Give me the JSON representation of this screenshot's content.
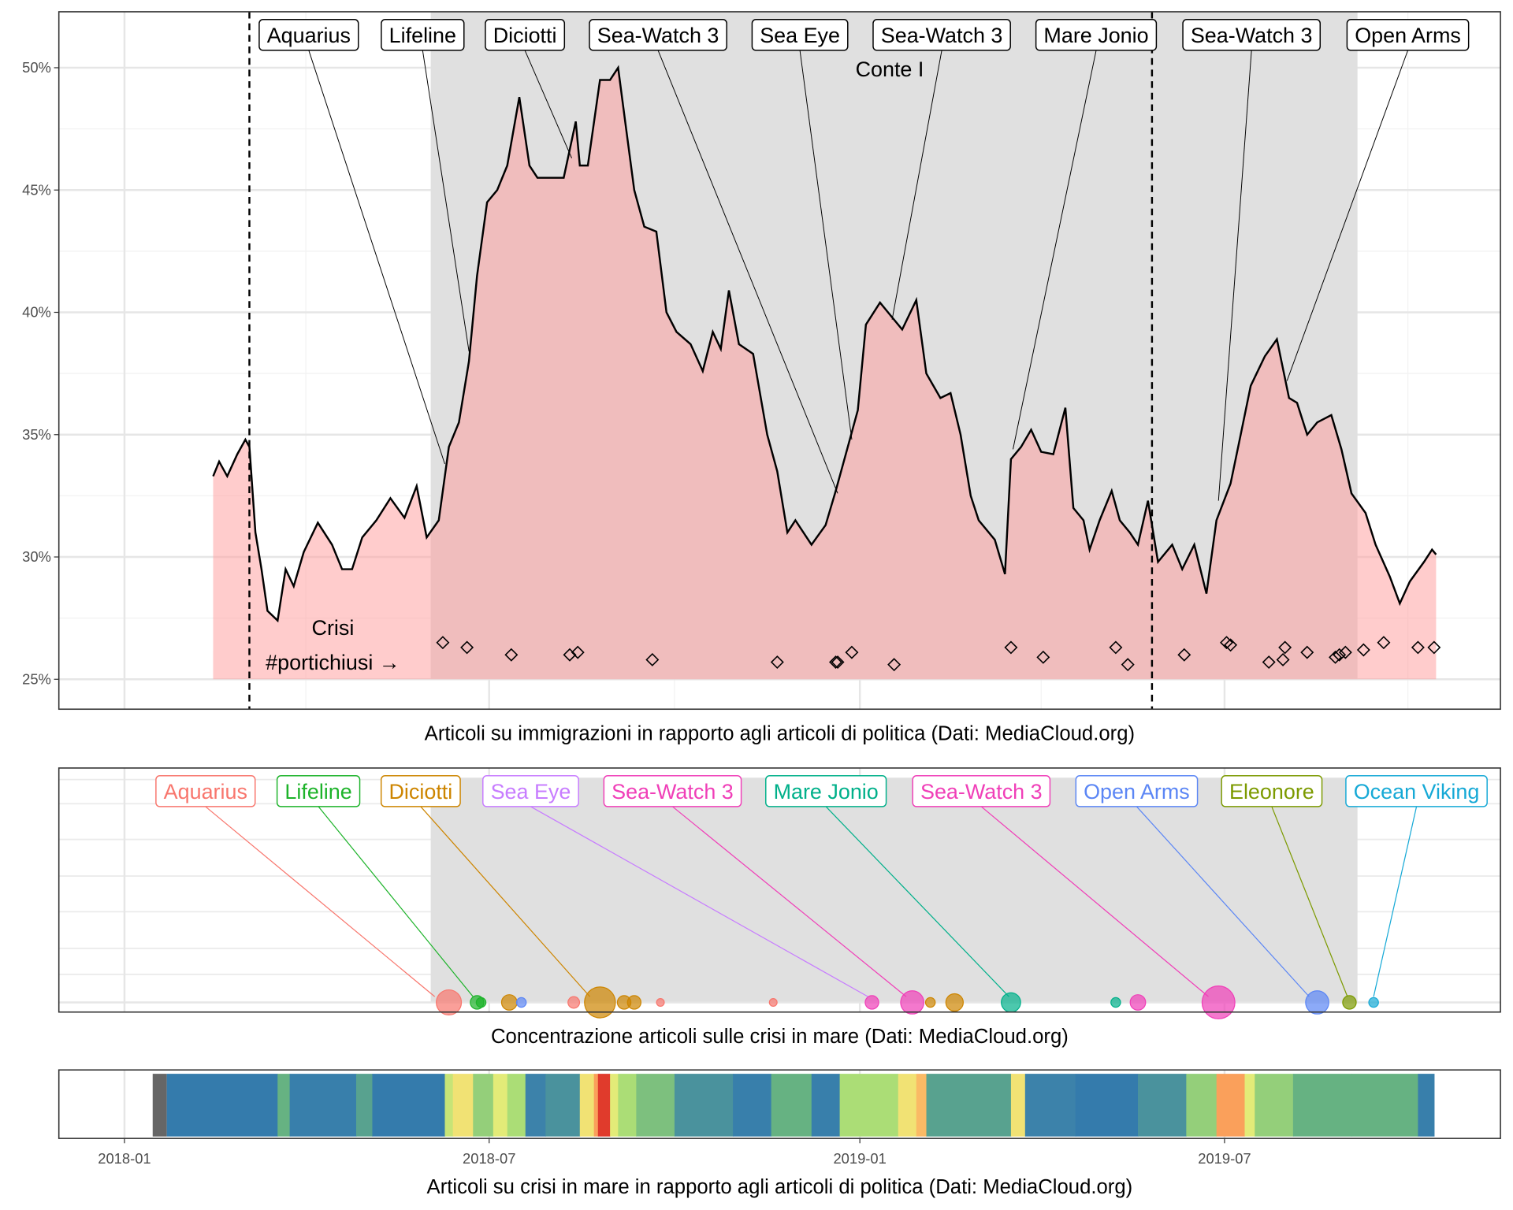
{
  "chart_data": [
    {
      "type": "area",
      "title": "Articoli su immigrazioni in rapporto agli articoli di politica (Dati: MediaCloud.org)",
      "x_unit": "days since 2018-01-01",
      "ylim": [
        23.8,
        52.3
      ],
      "y_ticks": [
        25,
        30,
        35,
        40,
        45,
        50
      ],
      "y_tick_labels": [
        "25%",
        "30%",
        "35%",
        "40%",
        "45%",
        "50%"
      ],
      "colors": {
        "fill_outside": "#ffcccc",
        "fill_inside": "#e5b3b3",
        "line": "#000000",
        "shade": "#e0e0e0"
      },
      "series": [
        [
          44,
          33.3
        ],
        [
          47,
          33.9
        ],
        [
          51,
          33.3
        ],
        [
          56,
          34.2
        ],
        [
          60,
          34.8
        ],
        [
          62,
          34.5
        ],
        [
          65,
          31
        ],
        [
          68,
          29.5
        ],
        [
          71,
          27.8
        ],
        [
          76,
          27.4
        ],
        [
          80,
          29.5
        ],
        [
          84,
          28.8
        ],
        [
          89,
          30.2
        ],
        [
          96,
          31.4
        ],
        [
          103,
          30.5
        ],
        [
          108,
          29.5
        ],
        [
          113,
          29.5
        ],
        [
          118,
          30.8
        ],
        [
          125,
          31.5
        ],
        [
          132,
          32.4
        ],
        [
          139,
          31.6
        ],
        [
          145,
          32.9
        ],
        [
          150,
          30.8
        ],
        [
          156,
          31.5
        ],
        [
          161,
          34.5
        ],
        [
          166,
          35.5
        ],
        [
          171,
          38
        ],
        [
          175,
          41.5
        ],
        [
          180,
          44.5
        ],
        [
          185,
          45
        ],
        [
          190,
          46
        ],
        [
          196,
          48.8
        ],
        [
          201,
          46
        ],
        [
          205,
          45.5
        ],
        [
          211,
          45.5
        ],
        [
          218,
          45.5
        ],
        [
          224,
          47.8
        ],
        [
          226,
          46
        ],
        [
          230,
          46
        ],
        [
          236,
          49.5
        ],
        [
          241,
          49.5
        ],
        [
          245,
          50
        ],
        [
          249,
          47.5
        ],
        [
          253,
          45
        ],
        [
          258,
          43.5
        ],
        [
          264,
          43.3
        ],
        [
          269,
          40
        ],
        [
          274,
          39.2
        ],
        [
          281,
          38.7
        ],
        [
          287,
          37.6
        ],
        [
          292,
          39.2
        ],
        [
          296,
          38.5
        ],
        [
          300,
          40.9
        ],
        [
          305,
          38.7
        ],
        [
          312,
          38.3
        ],
        [
          319,
          35
        ],
        [
          324,
          33.5
        ],
        [
          329,
          31
        ],
        [
          333,
          31.5
        ],
        [
          341,
          30.5
        ],
        [
          348,
          31.3
        ],
        [
          353,
          32.7
        ],
        [
          359,
          34.5
        ],
        [
          364,
          36
        ],
        [
          368,
          39.5
        ],
        [
          375,
          40.4
        ],
        [
          381,
          39.8
        ],
        [
          386,
          39.3
        ],
        [
          393,
          40.5
        ],
        [
          398,
          37.5
        ],
        [
          405,
          36.5
        ],
        [
          410,
          36.7
        ],
        [
          415,
          35
        ],
        [
          420,
          32.5
        ],
        [
          424,
          31.5
        ],
        [
          432,
          30.7
        ],
        [
          437,
          29.3
        ],
        [
          440,
          34
        ],
        [
          445,
          34.5
        ],
        [
          450,
          35.2
        ],
        [
          455,
          34.3
        ],
        [
          461,
          34.2
        ],
        [
          467,
          36.1
        ],
        [
          471,
          32
        ],
        [
          476,
          31.5
        ],
        [
          479,
          30.3
        ],
        [
          484,
          31.5
        ],
        [
          490,
          32.7
        ],
        [
          494,
          31.5
        ],
        [
          499,
          31
        ],
        [
          503,
          30.5
        ],
        [
          508,
          32.3
        ],
        [
          513,
          29.8
        ],
        [
          520,
          30.5
        ],
        [
          525,
          29.5
        ],
        [
          531,
          30.5
        ],
        [
          537,
          28.5
        ],
        [
          542,
          31.5
        ],
        [
          549,
          33
        ],
        [
          554,
          35
        ],
        [
          559,
          37
        ],
        [
          566,
          38.2
        ],
        [
          572,
          38.9
        ],
        [
          578,
          36.5
        ],
        [
          582,
          36.3
        ],
        [
          587,
          35
        ],
        [
          592,
          35.5
        ],
        [
          599,
          35.8
        ],
        [
          604,
          34.4
        ],
        [
          609,
          32.6
        ],
        [
          616,
          31.8
        ],
        [
          621,
          30.5
        ],
        [
          628,
          29.2
        ],
        [
          633,
          28.1
        ],
        [
          638,
          29
        ],
        [
          645,
          29.8
        ],
        [
          649,
          30.3
        ],
        [
          651,
          30.1
        ]
      ],
      "event_markers": [
        [
          158,
          26.5
        ],
        [
          170,
          26.3
        ],
        [
          192,
          26
        ],
        [
          221,
          26
        ],
        [
          225,
          26.1
        ],
        [
          262,
          25.8
        ],
        [
          324,
          25.7
        ],
        [
          353,
          25.7
        ],
        [
          354,
          25.7
        ],
        [
          361,
          26.1
        ],
        [
          382,
          25.6
        ],
        [
          440,
          26.3
        ],
        [
          456,
          25.9
        ],
        [
          492,
          26.3
        ],
        [
          498,
          25.6
        ],
        [
          526,
          26
        ],
        [
          547,
          26.5
        ],
        [
          549,
          26.4
        ],
        [
          568,
          25.7
        ],
        [
          575,
          25.8
        ],
        [
          576,
          26.3
        ],
        [
          587,
          26.1
        ],
        [
          601,
          25.9
        ],
        [
          603,
          26
        ],
        [
          606,
          26.1
        ],
        [
          615,
          26.2
        ],
        [
          625,
          26.5
        ],
        [
          642,
          26.3
        ],
        [
          650,
          26.3
        ]
      ],
      "shaded_period": {
        "start_day": 152,
        "end_day": 612,
        "label": "Conte I"
      },
      "vlines": [
        {
          "day": 62,
          "label_line1": "Crisi",
          "label_line2": "#portichiusi →"
        },
        {
          "day": 510
        }
      ],
      "annotations": [
        {
          "label": "Aquarius",
          "target": [
            159,
            33.8
          ]
        },
        {
          "label": "Lifeline",
          "target": [
            171,
            38.4
          ]
        },
        {
          "label": "Diciotti",
          "target": [
            222,
            46.3
          ]
        },
        {
          "label": "Sea-Watch 3",
          "target": [
            354,
            32.6
          ]
        },
        {
          "label": "Sea Eye",
          "target": [
            361,
            34.8
          ]
        },
        {
          "label": "Sea-Watch 3",
          "target": [
            381,
            39.7
          ]
        },
        {
          "label": "Mare Jonio",
          "target": [
            441,
            34.4
          ]
        },
        {
          "label": "Sea-Watch 3",
          "target": [
            543,
            32.3
          ]
        },
        {
          "label": "Open Arms",
          "target": [
            577,
            37.2
          ]
        }
      ]
    },
    {
      "type": "scatter",
      "title": "Concentrazione articoli sulle crisi in mare (Dati: MediaCloud.org)",
      "x_unit": "days since 2018-01-01",
      "groups": [
        {
          "label": "Aquarius",
          "color": "#F8766D",
          "target_day": 154,
          "points": [
            [
              161,
              13
            ],
            [
              223,
              6
            ],
            [
              266,
              4
            ],
            [
              322,
              4
            ]
          ]
        },
        {
          "label": "Lifeline",
          "color": "#1DB32A",
          "target_day": 173,
          "points": [
            [
              175,
              7
            ],
            [
              177,
              5
            ]
          ]
        },
        {
          "label": "Diciotti",
          "color": "#CD8500",
          "target_day": 231,
          "points": [
            [
              191,
              8
            ],
            [
              236,
              16
            ],
            [
              248,
              7
            ],
            [
              253,
              7
            ],
            [
              400,
              5
            ],
            [
              412,
              9
            ]
          ]
        },
        {
          "label": "Sea Eye",
          "color": "#C77CFF",
          "target_day": 369,
          "points": []
        },
        {
          "label": "Sea-Watch 3",
          "color": "#F03FB8",
          "target_day": 388,
          "points": [
            [
              371,
              7
            ],
            [
              391,
              12
            ]
          ]
        },
        {
          "label": "Mare Jonio",
          "color": "#00B08A",
          "target_day": 439,
          "points": [
            [
              440,
              10
            ],
            [
              492,
              5
            ]
          ]
        },
        {
          "label": "Sea-Watch 3",
          "color": "#F03FB8",
          "target_day": 538,
          "points": [
            [
              503,
              8
            ],
            [
              543,
              17
            ]
          ]
        },
        {
          "label": "Open Arms",
          "color": "#5B86F5",
          "target_day": 588,
          "points": [
            [
              197,
              5
            ],
            [
              592,
              12
            ]
          ]
        },
        {
          "label": "Eleonore",
          "color": "#7C9A00",
          "target_day": 607,
          "points": [
            [
              608,
              7
            ]
          ]
        },
        {
          "label": "Ocean Viking",
          "color": "#16A9D6",
          "target_day": 620,
          "points": [
            [
              620,
              5
            ]
          ]
        }
      ]
    },
    {
      "type": "heatmap",
      "title": "Articoli su crisi in mare in rapporto agli articoli di politica (Dati: MediaCloud.org)",
      "x_ticks": [
        0,
        181,
        365,
        546
      ],
      "x_tick_labels": [
        "2018-01",
        "2018-07",
        "2019-01",
        "2019-07"
      ],
      "missing": [
        14,
        21
      ],
      "segments": [
        [
          21,
          76,
          0.1
        ],
        [
          76,
          82,
          0.35
        ],
        [
          82,
          115,
          0.15
        ],
        [
          115,
          123,
          0.3
        ],
        [
          123,
          159,
          0.1
        ],
        [
          159,
          163,
          0.55
        ],
        [
          163,
          173,
          0.65
        ],
        [
          173,
          183,
          0.45
        ],
        [
          183,
          190,
          0.6
        ],
        [
          190,
          199,
          0.5
        ],
        [
          199,
          209,
          0.2
        ],
        [
          209,
          226,
          0.25
        ],
        [
          226,
          233,
          0.65
        ],
        [
          233,
          235,
          0.8
        ],
        [
          235,
          241,
          0.95
        ],
        [
          241,
          245,
          0.6
        ],
        [
          245,
          254,
          0.5
        ],
        [
          254,
          273,
          0.4
        ],
        [
          273,
          302,
          0.25
        ],
        [
          302,
          321,
          0.15
        ],
        [
          321,
          341,
          0.35
        ],
        [
          341,
          355,
          0.15
        ],
        [
          355,
          384,
          0.5
        ],
        [
          384,
          393,
          0.65
        ],
        [
          393,
          398,
          0.75
        ],
        [
          398,
          440,
          0.3
        ],
        [
          440,
          447,
          0.65
        ],
        [
          447,
          472,
          0.2
        ],
        [
          472,
          503,
          0.1
        ],
        [
          503,
          527,
          0.25
        ],
        [
          527,
          542,
          0.45
        ],
        [
          542,
          556,
          0.8
        ],
        [
          556,
          561,
          0.6
        ],
        [
          561,
          580,
          0.45
        ],
        [
          580,
          609,
          0.35
        ],
        [
          609,
          642,
          0.35
        ],
        [
          642,
          650,
          0.15
        ]
      ]
    }
  ]
}
